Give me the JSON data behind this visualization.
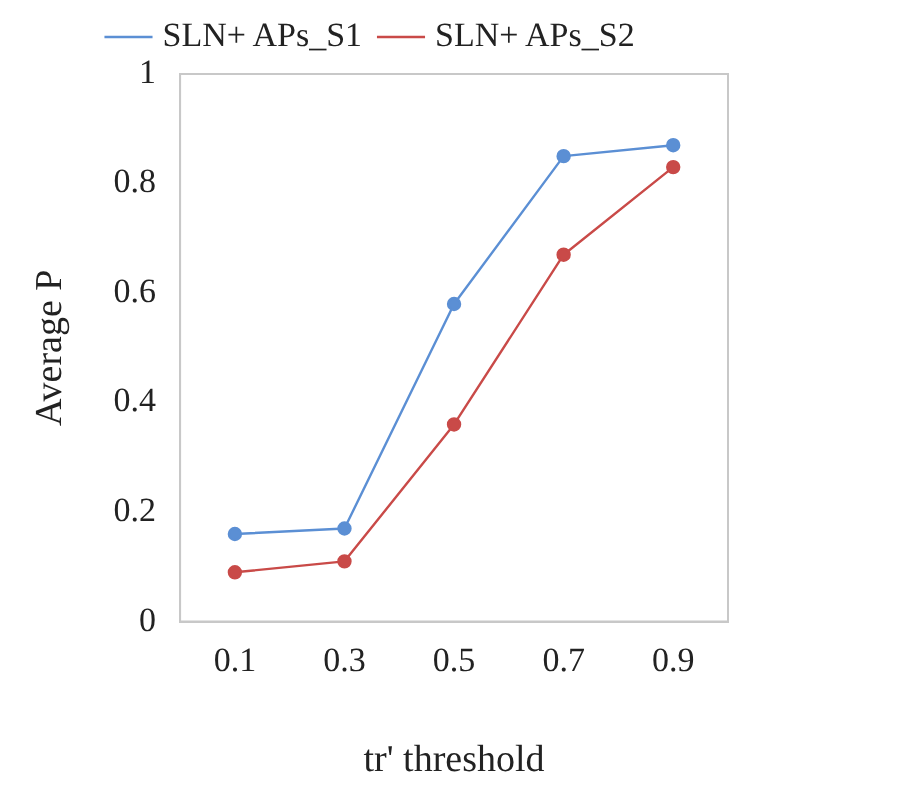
{
  "chart_data": {
    "type": "line",
    "xlabel": "tr' threshold",
    "ylabel": "Average P",
    "categories": [
      "0.1",
      "0.3",
      "0.5",
      "0.7",
      "0.9"
    ],
    "series": [
      {
        "name": "SLN+ APs_S1",
        "color": "#5b8fd4",
        "values": [
          0.16,
          0.17,
          0.58,
          0.85,
          0.87
        ]
      },
      {
        "name": "SLN+ APs_S2",
        "color": "#c94a48",
        "values": [
          0.09,
          0.11,
          0.36,
          0.67,
          0.83
        ]
      }
    ],
    "ylim": [
      0,
      1
    ],
    "yticks": [
      0,
      0.2,
      0.4,
      0.6,
      0.8,
      1
    ],
    "grid": false,
    "legend": "top",
    "marker": "circle",
    "line_style": "solid"
  }
}
